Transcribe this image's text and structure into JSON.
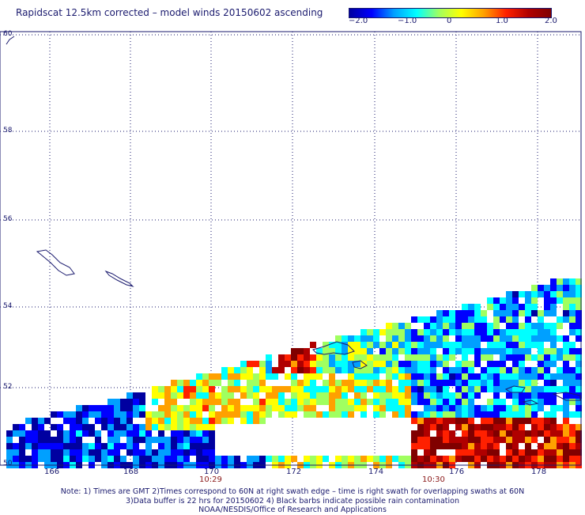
{
  "title": "Rapidscat 12.5km corrected – model winds 20150602 ascending",
  "colorbar": {
    "ticks": [
      "−2.0",
      "−1.0",
      "0",
      "1.0",
      "2.0"
    ],
    "tick_values": [
      -2.0,
      -1.0,
      0,
      1.0,
      2.0
    ],
    "range": [
      -2.0,
      2.0
    ],
    "colors": [
      "#0000a0",
      "#0000ff",
      "#00a0ff",
      "#00ffff",
      "#a0ff60",
      "#ffff00",
      "#ffa000",
      "#ff2000",
      "#b00000",
      "#800000"
    ]
  },
  "map": {
    "lat_labels": [
      "60",
      "58",
      "56",
      "54",
      "52",
      "50"
    ],
    "lon_labels": [
      "166",
      "168",
      "170",
      "172",
      "174",
      "176",
      "178"
    ],
    "time_labels": [
      "10:29",
      "10:30"
    ],
    "grid_style": "dotted",
    "coastline_color": "#1a1a6e"
  },
  "notes": {
    "line1": "Note: 1) Times are GMT 2)Times correspond to 60N at right swath edge – time is right swath for overlapping swaths at 60N",
    "line2": "3)Data buffer is 22 hrs for 20150602 4) Black barbs indicate possible rain contamination",
    "line3": "NOAA/NESDIS/Office of Research and Applications"
  }
}
